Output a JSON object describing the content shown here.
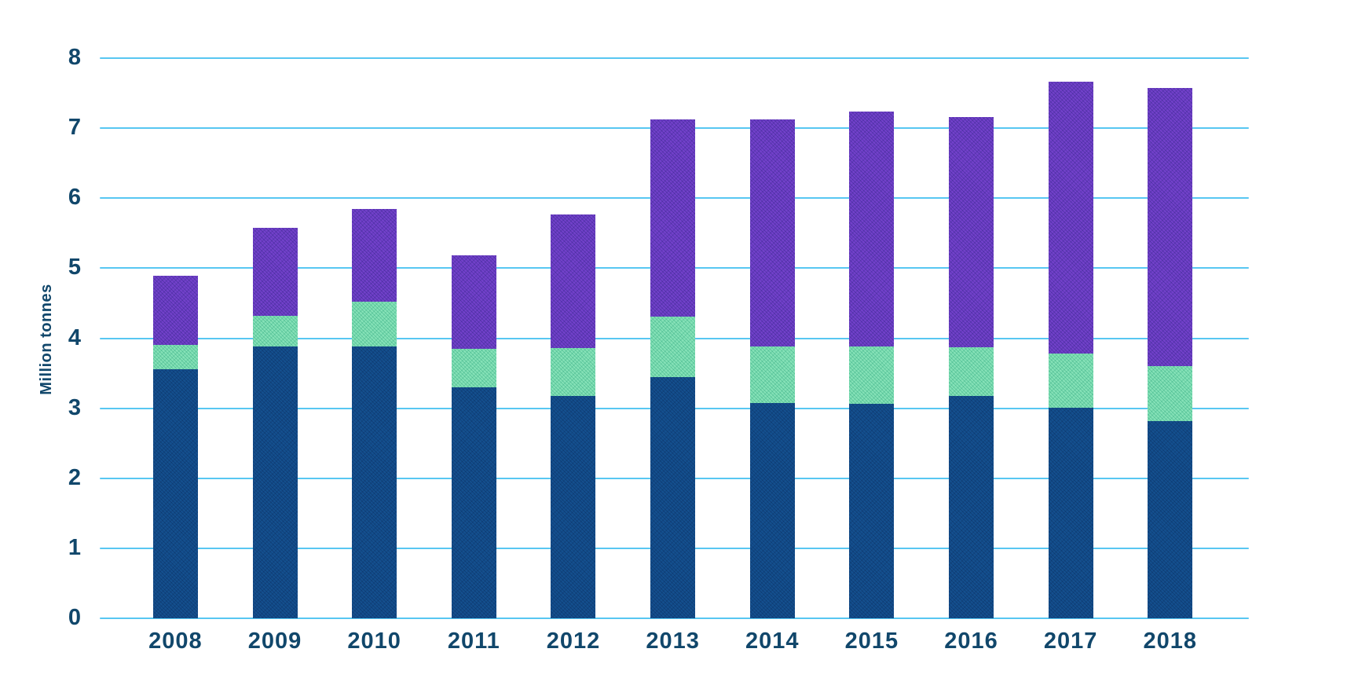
{
  "chart_data": {
    "type": "bar",
    "stacked": true,
    "title": "",
    "xlabel": "",
    "ylabel": "Million tonnes",
    "ylim": [
      0,
      8
    ],
    "yticks": [
      0,
      1,
      2,
      3,
      4,
      5,
      6,
      7,
      8
    ],
    "grid": true,
    "legend_position": "none",
    "categories": [
      "2008",
      "2009",
      "2010",
      "2011",
      "2012",
      "2013",
      "2014",
      "2015",
      "2016",
      "2017",
      "2018"
    ],
    "series": [
      {
        "name": "segment-bottom",
        "color": "#14508f",
        "values": [
          3.56,
          3.88,
          3.88,
          3.3,
          3.17,
          3.44,
          3.08,
          3.06,
          3.17,
          3.01,
          2.82
        ]
      },
      {
        "name": "segment-middle",
        "color": "#86e2b8",
        "values": [
          0.35,
          0.44,
          0.64,
          0.55,
          0.69,
          0.87,
          0.8,
          0.82,
          0.7,
          0.77,
          0.78
        ]
      },
      {
        "name": "segment-top",
        "color": "#7341cb",
        "values": [
          0.98,
          1.26,
          1.33,
          1.33,
          1.91,
          2.82,
          3.25,
          3.36,
          3.29,
          3.88,
          3.97
        ]
      }
    ],
    "totals": [
      4.89,
      5.58,
      5.85,
      5.18,
      5.77,
      7.13,
      7.13,
      7.24,
      7.16,
      7.66,
      7.57
    ],
    "colors": {
      "gridline": "#58c7f2",
      "axis_text": "#11476b",
      "background": "#ffffff"
    }
  }
}
